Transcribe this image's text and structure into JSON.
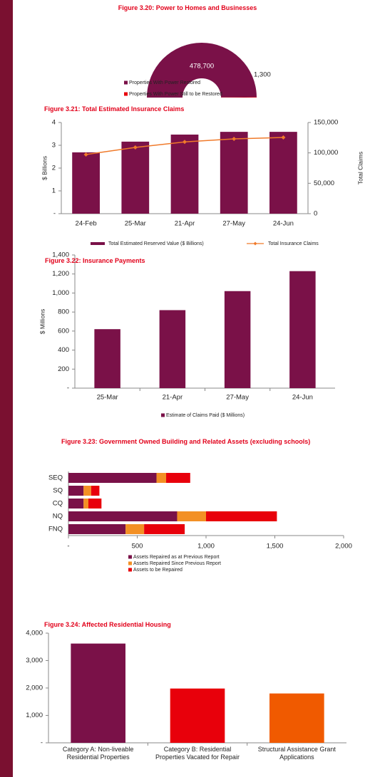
{
  "chart_data": [
    {
      "type": "semi-donut",
      "title": "Figure 3.20: Power to Homes and Businesses",
      "categories": [
        "Properties With Power Restored",
        "Properties With Power Still to be Restored"
      ],
      "values": [
        478700,
        1300
      ],
      "value_labels": [
        "478,700",
        "1,300"
      ],
      "colors": [
        "#7a1148",
        "#e8000b"
      ]
    },
    {
      "type": "bar-line",
      "title": "Figure 3.21: Total Estimated Insurance Claims",
      "categories": [
        "24-Feb",
        "25-Mar",
        "21-Apr",
        "27-May",
        "24-Jun"
      ],
      "ylabel": "$ Billions",
      "y2label": "Total Claims",
      "ylim": [
        0,
        4
      ],
      "yticks": [
        {
          "value": 0,
          "label": "-"
        },
        1,
        2,
        3,
        4
      ],
      "y2lim": [
        0,
        150000
      ],
      "y2ticks": [
        0,
        {
          "value": 50000,
          "label": "50,000"
        },
        {
          "value": 100000,
          "label": "100,000"
        },
        {
          "value": 150000,
          "label": "150,000"
        }
      ],
      "series": [
        {
          "name": "Total Estimated Reserved Value ($ Billions)",
          "type": "bar",
          "color": "#7a1148",
          "values": [
            2.69,
            3.16,
            3.47,
            3.59,
            3.59
          ]
        },
        {
          "name": "Total Insurance Claims",
          "type": "line",
          "axis": "y2",
          "color": "#f07a2a",
          "values": [
            97300,
            109000,
            118000,
            123000,
            125400
          ]
        }
      ]
    },
    {
      "type": "bar",
      "title": "Figure 3.22: Insurance Payments",
      "categories": [
        "25-Mar",
        "21-Apr",
        "27-May",
        "24-Jun"
      ],
      "ylabel": "$ Millions",
      "ylim": [
        0,
        1400
      ],
      "yticks": [
        {
          "value": 0,
          "label": "-"
        },
        200,
        400,
        600,
        800,
        {
          "value": 1000,
          "label": "1,000"
        },
        {
          "value": 1200,
          "label": "1,200"
        },
        {
          "value": 1400,
          "label": "1,400"
        }
      ],
      "series": [
        {
          "name": "Estimate of Claims Paid ($ Millions)",
          "color": "#7a1148",
          "values": [
            620,
            820,
            1020,
            1230
          ]
        }
      ]
    },
    {
      "type": "stacked-hbar",
      "title": "Figure 3.23: Government Owned Building and Related Assets (excluding schools)",
      "categories": [
        "SEQ",
        "SQ",
        "CQ",
        "NQ",
        "FNQ"
      ],
      "xlim": [
        0,
        2000
      ],
      "xticks": [
        {
          "value": 0,
          "label": "-"
        },
        500,
        {
          "value": 1000,
          "label": "1,000"
        },
        {
          "value": 1500,
          "label": "1,500"
        },
        {
          "value": 2000,
          "label": "2,000"
        }
      ],
      "series": [
        {
          "name": "Assets Repaired as at Previous Report",
          "color": "#7a1148",
          "values": [
            640,
            110,
            110,
            790,
            415
          ]
        },
        {
          "name": "Assets Repaired Since Previous Report",
          "color": "#f39025",
          "values": [
            70,
            55,
            35,
            210,
            135
          ]
        },
        {
          "name": "Assets to be Repaired",
          "color": "#e8000b",
          "values": [
            175,
            60,
            95,
            515,
            295
          ]
        }
      ]
    },
    {
      "type": "bar",
      "title": "Figure 3.24: Affected Residential Housing",
      "categories": [
        "Category A: Non-liveable Residential Properties",
        "Category B: Residential Properties Vacated for Repair",
        "Structural Assistance Grant Applications"
      ],
      "values": [
        3620,
        1980,
        1800
      ],
      "colors": [
        "#7a1148",
        "#e8000b",
        "#f05a00"
      ],
      "ylim": [
        0,
        4000
      ],
      "yticks": [
        {
          "value": 0,
          "label": "-"
        },
        {
          "value": 1000,
          "label": "1,000"
        },
        {
          "value": 2000,
          "label": "2,000"
        },
        {
          "value": 3000,
          "label": "3,000"
        },
        {
          "value": 4000,
          "label": "4,000"
        }
      ]
    }
  ]
}
